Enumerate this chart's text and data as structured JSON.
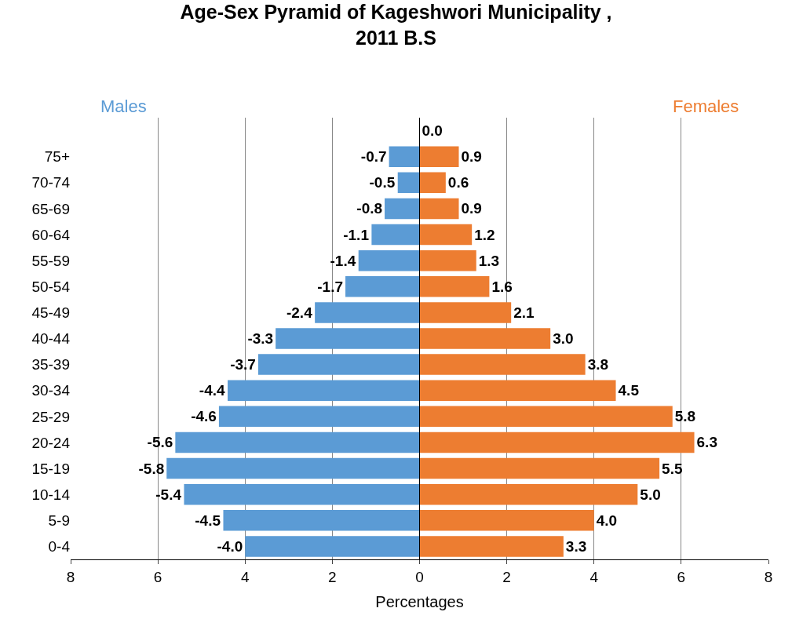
{
  "chart_data": {
    "type": "bar",
    "orientation": "horizontal",
    "title": "Age-Sex Pyramid of Kageshwori Municipality ,\n2011 B.S",
    "xlabel": "Percentages",
    "categories": [
      null,
      "75+",
      "70-74",
      "65-69",
      "60-64",
      "55-59",
      "50-54",
      "45-49",
      "40-44",
      "35-39",
      "30-34",
      "25-29",
      "20-24",
      "15-19",
      "10-14",
      "5-9",
      "0-4"
    ],
    "series": [
      {
        "name": "Males",
        "color": "#5b9bd5",
        "values": [
          null,
          -0.7,
          -0.5,
          -0.8,
          -1.1,
          -1.4,
          -1.7,
          -2.4,
          -3.3,
          -3.7,
          -4.4,
          -4.6,
          -5.6,
          -5.8,
          -5.4,
          -4.5,
          -4.0
        ],
        "value_labels": [
          null,
          "-0.7",
          "-0.5",
          "-0.8",
          "-1.1",
          "-1.4",
          "-1.7",
          "-2.4",
          "-3.3",
          "-3.7",
          "-4.4",
          "-4.6",
          "-5.6",
          "-5.8",
          "-5.4",
          "-4.5",
          "-4.0"
        ]
      },
      {
        "name": "Females",
        "color": "#ed7d31",
        "values": [
          0.0,
          0.9,
          0.6,
          0.9,
          1.2,
          1.3,
          1.6,
          2.1,
          3.0,
          3.8,
          4.5,
          5.8,
          6.3,
          5.5,
          5.0,
          4.0,
          3.3
        ],
        "value_labels": [
          "0.0",
          "0.9",
          "0.6",
          "0.9",
          "1.2",
          "1.3",
          "1.6",
          "2.1",
          "3.0",
          "3.8",
          "4.5",
          "5.8",
          "6.3",
          "5.5",
          "5.0",
          "4.0",
          "3.3"
        ]
      }
    ],
    "xlim": [
      -8,
      8
    ],
    "xticks": [
      {
        "value": -8,
        "label": "8"
      },
      {
        "value": -6,
        "label": "6"
      },
      {
        "value": -4,
        "label": "4"
      },
      {
        "value": -2,
        "label": "2"
      },
      0,
      2,
      4,
      6,
      8
    ],
    "grid": "x",
    "legend": false,
    "stacked": true
  }
}
